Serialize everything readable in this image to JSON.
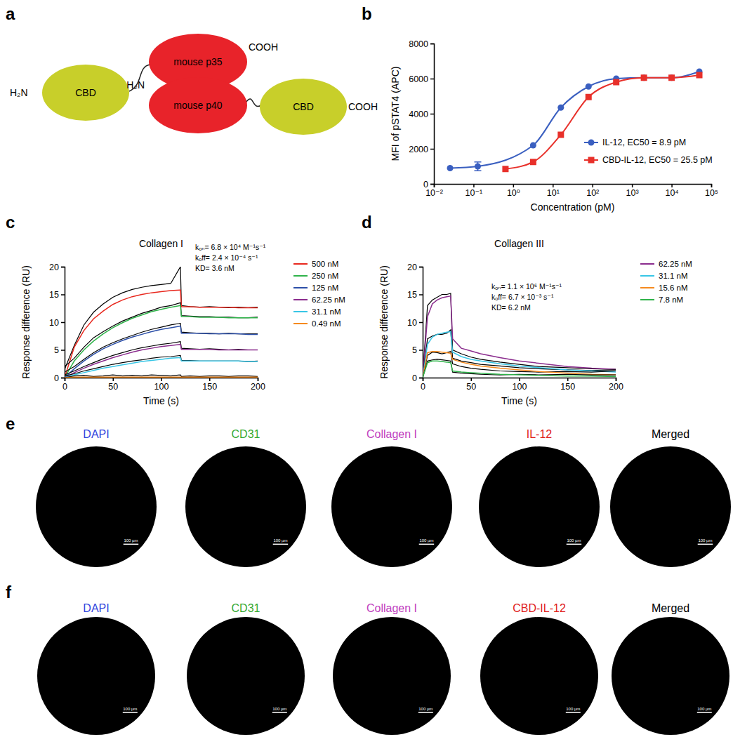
{
  "panel_labels": [
    "a",
    "b",
    "c",
    "d",
    "e",
    "f"
  ],
  "diagram": {
    "nodes": [
      {
        "label": "CBD",
        "color": "#c8cf2a"
      },
      {
        "label": "mouse p35",
        "color": "#e8232a"
      },
      {
        "label": "mouse p40",
        "color": "#e8232a"
      },
      {
        "label": "CBD",
        "color": "#c8cf2a"
      }
    ],
    "termini": [
      "H₂N",
      "COOH",
      "H₂N",
      "COOH"
    ]
  },
  "chart_data": [
    {
      "type": "line",
      "log": "x",
      "x_label": "Concentration (pM)",
      "y_label": "MFI of pSTAT4 (APC)",
      "xlim": [
        0.01,
        100000
      ],
      "xticks": [
        {
          "value": 0.01,
          "label": "10⁻²"
        },
        {
          "value": 0.1,
          "label": "10⁻¹"
        },
        {
          "value": 1,
          "label": "10⁰"
        },
        {
          "value": 10,
          "label": "10¹"
        },
        {
          "value": 100,
          "label": "10²"
        },
        {
          "value": 1000,
          "label": "10³"
        },
        {
          "value": 10000,
          "label": "10⁴"
        },
        {
          "value": 100000,
          "label": "10⁵"
        }
      ],
      "ylim": [
        0,
        8000
      ],
      "yticks": [
        0,
        2000,
        4000,
        6000,
        8000
      ],
      "legend": "lower right",
      "series": [
        {
          "name": "IL-12, EC50 = 8.9 pM",
          "color": "#3a5fc0",
          "marker": "circle",
          "x": [
            0.0256,
            0.128,
            3.2,
            16,
            80,
            400,
            2000,
            10000,
            50000
          ],
          "values": [
            900,
            1000,
            2200,
            4350,
            5550,
            6000,
            6050,
            6050,
            6400
          ],
          "errors": [
            null,
            250,
            null,
            null,
            null,
            null,
            null,
            null,
            null
          ]
        },
        {
          "name": "CBD-IL-12, EC50 = 25.5 pM",
          "color": "#e8302a",
          "marker": "square",
          "x": [
            0.64,
            3.2,
            16,
            80,
            400,
            2000,
            10000,
            50000
          ],
          "values": [
            850,
            1250,
            2800,
            4950,
            5800,
            6050,
            6050,
            6200
          ]
        }
      ]
    },
    {
      "type": "line",
      "title": "Collagen I",
      "x_label": "Time (s)",
      "y_label": "Response difference (RU)",
      "annotations": [
        "kₒₙ= 6.8 × 10⁴ M⁻¹s⁻¹",
        "kₒff= 2.4 × 10⁻⁴ s⁻¹",
        "KD= 3.6 nM"
      ],
      "xlim": [
        0,
        200
      ],
      "xticks": [
        0,
        50,
        100,
        150,
        200
      ],
      "ylim": [
        0,
        20
      ],
      "yticks": [
        0,
        5,
        10,
        15,
        20
      ],
      "legend": "right",
      "x": [
        0,
        10,
        20,
        30,
        40,
        50,
        60,
        70,
        80,
        90,
        100,
        110,
        120,
        121,
        130,
        140,
        150,
        160,
        170,
        180,
        190,
        200
      ],
      "series": [
        {
          "name": "500 nM",
          "color": "#e8281e",
          "values": [
            0,
            5.5,
            8.5,
            10.6,
            12,
            13.2,
            14,
            14.6,
            15,
            15.3,
            15.5,
            15.7,
            15.8,
            12.8,
            12.8,
            12.7,
            12.7,
            12.7,
            12.7,
            12.6,
            12.6,
            12.6
          ],
          "measured": [
            1.5,
            5.8,
            9.5,
            11.8,
            13.3,
            14.5,
            15.3,
            15.9,
            16.3,
            16.6,
            16.8,
            17,
            20,
            13,
            12.8,
            12.7,
            12.8,
            12.7,
            12.6,
            12.7,
            12.6,
            12.7
          ]
        },
        {
          "name": "250 nM",
          "color": "#2fb34a",
          "values": [
            0,
            3,
            5,
            6.6,
            7.9,
            9,
            9.9,
            10.7,
            11.3,
            11.9,
            12.3,
            12.7,
            13,
            11,
            11,
            10.9,
            10.9,
            10.9,
            10.8,
            10.8,
            10.8,
            10.8
          ],
          "measured": [
            2,
            3.5,
            5.5,
            7.2,
            8.3,
            9.3,
            10.2,
            10.9,
            11.6,
            12.1,
            12.7,
            13,
            13.5,
            11.2,
            11.1,
            11,
            11,
            10.9,
            10.9,
            10.8,
            10.8,
            10.9
          ]
        },
        {
          "name": "125 nM",
          "color": "#2c4fa8",
          "values": [
            0,
            1.6,
            3,
            4.2,
            5.2,
            6,
            6.7,
            7.3,
            7.8,
            8.3,
            8.7,
            9,
            9.3,
            8,
            8,
            8,
            7.9,
            7.9,
            7.9,
            7.9,
            7.8,
            7.8
          ],
          "measured": [
            1,
            2,
            3.3,
            4.5,
            5.5,
            6.3,
            7,
            7.6,
            8.2,
            8.7,
            9.1,
            9.5,
            9.8,
            8.2,
            8.1,
            8,
            8,
            7.9,
            8,
            7.9,
            7.9,
            7.9
          ]
        },
        {
          "name": "62.25 nM",
          "color": "#8b2d8e",
          "values": [
            0,
            0.9,
            1.7,
            2.4,
            3,
            3.6,
            4.1,
            4.6,
            5,
            5.3,
            5.6,
            5.8,
            6,
            5.1,
            5.1,
            5.1,
            5.1,
            5,
            5,
            5,
            5,
            5
          ],
          "measured": [
            0.5,
            1.2,
            2,
            2.7,
            3.4,
            4,
            4.5,
            5,
            5.4,
            5.7,
            6,
            6.2,
            6.5,
            5.3,
            5.2,
            5.1,
            5.2,
            5.1,
            5,
            5.1,
            5,
            5
          ]
        },
        {
          "name": "31.1 nM",
          "color": "#38c6e6",
          "values": [
            0,
            0.5,
            0.9,
            1.3,
            1.7,
            2,
            2.3,
            2.6,
            2.9,
            3.1,
            3.3,
            3.5,
            3.6,
            3,
            3,
            3,
            3,
            3,
            3,
            3,
            2.9,
            2.9
          ],
          "measured": [
            0.3,
            0.7,
            1.2,
            1.6,
            2,
            2.4,
            2.7,
            3,
            3.2,
            3.5,
            3.7,
            3.8,
            4,
            3.1,
            3.1,
            3,
            3,
            3,
            3,
            3,
            2.9,
            3
          ]
        },
        {
          "name": "0.49 nM",
          "color": "#f58a1f",
          "values": [
            0,
            0.1,
            0.1,
            0.1,
            0.1,
            0.1,
            0.1,
            0.1,
            0.1,
            0.1,
            0.1,
            0.1,
            0.1,
            0.1,
            0.1,
            0.1,
            0.1,
            0.1,
            0.1,
            0.1,
            0.1,
            0.1
          ],
          "measured": [
            0,
            0.3,
            0.4,
            0.2,
            0.3,
            0.5,
            0.3,
            0.4,
            0.3,
            0.5,
            0.4,
            0.3,
            0.5,
            0.2,
            0.3,
            0.2,
            0.3,
            0.3,
            0.2,
            0.3,
            0.3,
            0.2
          ]
        }
      ]
    },
    {
      "type": "line",
      "title": "Collagen III",
      "x_label": "Time (s)",
      "y_label": "Response difference (RU)",
      "annotations": [
        "kₒₙ= 1.1 × 10⁶ M⁻¹s⁻¹",
        "kₒff= 6.7 × 10⁻³ s⁻¹",
        "KD= 6.2 nM"
      ],
      "xlim": [
        0,
        200
      ],
      "xticks": [
        0,
        50,
        100,
        150,
        200
      ],
      "ylim": [
        0,
        20
      ],
      "yticks": [
        0,
        5,
        10,
        15,
        20
      ],
      "legend": "right",
      "x": [
        0,
        5,
        10,
        15,
        20,
        25,
        29,
        31,
        40,
        50,
        60,
        80,
        100,
        120,
        150,
        175,
        200
      ],
      "series": [
        {
          "name": "62.25 nM",
          "color": "#8b2d8e",
          "values": [
            0,
            11,
            13.3,
            14,
            14.4,
            14.6,
            14.7,
            7,
            5.3,
            4.8,
            4.3,
            3.6,
            3,
            2.6,
            2,
            1.7,
            1.5
          ],
          "measured": [
            0,
            13,
            14,
            14.5,
            15,
            15,
            15.2,
            5,
            4.3,
            3.7,
            3.3,
            2.8,
            2.4,
            2,
            1.8,
            1.6,
            1.5
          ]
        },
        {
          "name": "31.1 nM",
          "color": "#38c6e6",
          "values": [
            0,
            6,
            7.3,
            7.8,
            8,
            8.2,
            8.3,
            4.6,
            3.8,
            3.3,
            3,
            2.5,
            2.1,
            1.8,
            1.4,
            1.2,
            1
          ],
          "measured": [
            0,
            7,
            7.5,
            7.8,
            7.8,
            8,
            8.6,
            3.5,
            3,
            2.7,
            2.4,
            2.1,
            1.8,
            1.6,
            1.4,
            1.3,
            1.4
          ]
        },
        {
          "name": "15.6 nM",
          "color": "#f58a1f",
          "values": [
            0,
            4.5,
            4.7,
            4.7,
            4.6,
            4.5,
            4.4,
            3.3,
            2.8,
            2.4,
            2.1,
            1.7,
            1.4,
            1.1,
            0.8,
            0.6,
            0.5
          ],
          "measured": [
            0,
            4,
            4.6,
            4.5,
            4.3,
            4.5,
            4.7,
            2.5,
            2,
            1.7,
            1.5,
            1.2,
            1.1,
            1,
            1.1,
            1,
            1.2
          ]
        },
        {
          "name": "7.8 nM",
          "color": "#2fb34a",
          "values": [
            0,
            2.7,
            3,
            3,
            2.9,
            2.8,
            2.7,
            1.2,
            1,
            0.9,
            0.8,
            0.6,
            0.5,
            0.4,
            0.3,
            0.3,
            0.2
          ],
          "measured": [
            0,
            3,
            3.2,
            3.3,
            3.2,
            3.1,
            3,
            1,
            0.8,
            0.7,
            0.6,
            0.5,
            0.6,
            0.5,
            0.6,
            0.5,
            0.5
          ]
        }
      ]
    }
  ],
  "images": {
    "scale_bar": "100 µm",
    "rows": [
      {
        "channels": [
          {
            "label": "DAPI",
            "color": "#3344dd"
          },
          {
            "label": "CD31",
            "color": "#33aa33"
          },
          {
            "label": "Collagen I",
            "color": "#c040c0"
          },
          {
            "label": "IL-12",
            "color": "#e0201b"
          },
          {
            "label": "Merged",
            "color": "#000000"
          }
        ]
      },
      {
        "channels": [
          {
            "label": "DAPI",
            "color": "#3344dd"
          },
          {
            "label": "CD31",
            "color": "#33aa33"
          },
          {
            "label": "Collagen I",
            "color": "#c040c0"
          },
          {
            "label": "CBD-IL-12",
            "color": "#e0201b"
          },
          {
            "label": "Merged",
            "color": "#000000"
          }
        ]
      }
    ]
  }
}
